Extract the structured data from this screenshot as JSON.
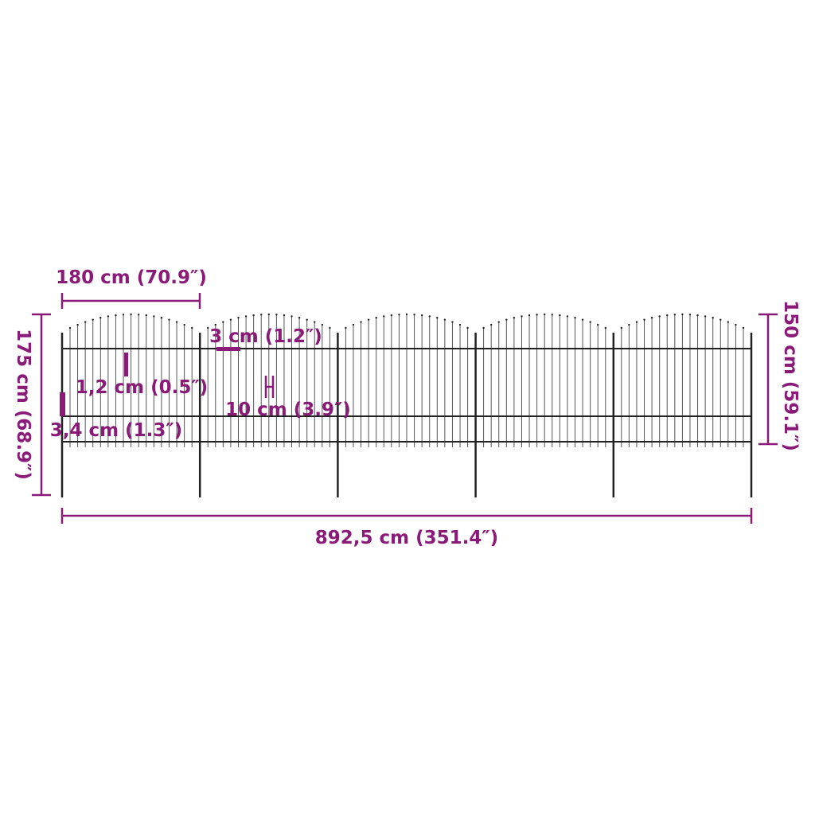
{
  "colors": {
    "dimension": "#8a1a78",
    "fence": "#222222"
  },
  "fence": {
    "panels": 5,
    "pickets_per_panel": 17
  },
  "dimensions": {
    "panel_width": "180 cm (70.9″)",
    "total_height": "175 cm (68.9″)",
    "fence_height": "150 cm (59.1″)",
    "total_length": "892,5 cm (351.4″)",
    "post_width": "3 cm (1.2″)",
    "picket_width": "1,2 cm (0.5″)",
    "post_depth": "3,4 cm (1.3″)",
    "picket_spacing": "10 cm (3.9″)"
  }
}
